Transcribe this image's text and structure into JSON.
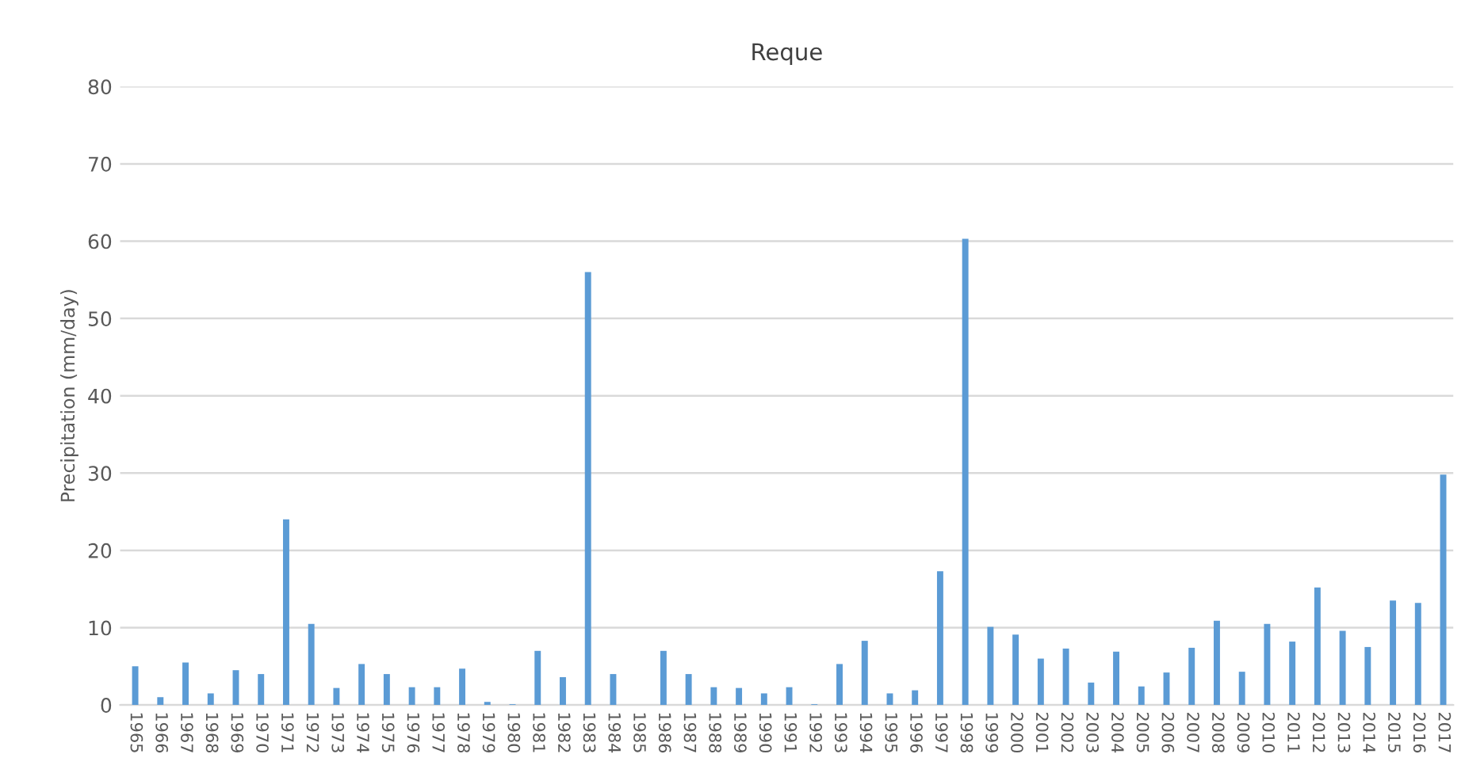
{
  "chart_data": {
    "type": "bar",
    "title": "Reque",
    "ylabel": "Precipitation (mm/day)",
    "categories": [
      "1965",
      "1966",
      "1967",
      "1968",
      "1969",
      "1970",
      "1971",
      "1972",
      "1973",
      "1974",
      "1975",
      "1976",
      "1977",
      "1978",
      "1979",
      "1980",
      "1981",
      "1982",
      "1983",
      "1984",
      "1985",
      "1986",
      "1987",
      "1988",
      "1989",
      "1990",
      "1991",
      "1992",
      "1993",
      "1994",
      "1995",
      "1996",
      "1997",
      "1998",
      "1999",
      "2000",
      "2001",
      "2002",
      "2003",
      "2004",
      "2005",
      "2006",
      "2007",
      "2008",
      "2009",
      "2010",
      "2011",
      "2012",
      "2013",
      "2014",
      "2015",
      "2016",
      "2017"
    ],
    "values": [
      5,
      1,
      5.5,
      1.5,
      4.5,
      4,
      24,
      10.5,
      2.2,
      5.3,
      4,
      2.3,
      2.3,
      4.7,
      0.4,
      0.1,
      7,
      3.6,
      56,
      4,
      0,
      7,
      4,
      2.3,
      2.2,
      1.5,
      2.3,
      0.1,
      5.3,
      8.3,
      1.5,
      1.9,
      17.3,
      60.3,
      10.1,
      9.1,
      6,
      7.3,
      2.9,
      6.9,
      2.4,
      4.2,
      7.4,
      10.9,
      4.3,
      10.5,
      8.2,
      15.2,
      9.6,
      7.5,
      13.5,
      13.2,
      29.8
    ],
    "color": "#5b9bd5",
    "ylim": [
      0,
      80
    ],
    "yticks": [
      0,
      10,
      20,
      30,
      40,
      50,
      60,
      70,
      80
    ],
    "grid": "y"
  }
}
